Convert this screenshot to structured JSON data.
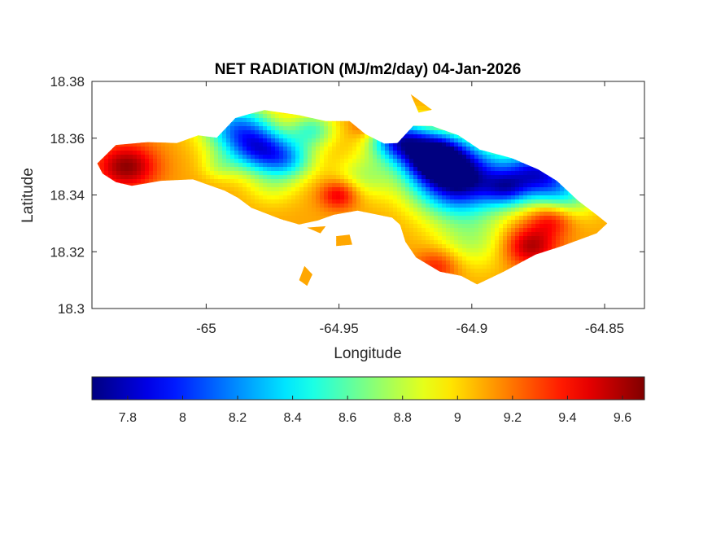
{
  "chart_data": {
    "type": "heatmap",
    "title": "NET RADIATION (MJ/m2/day) 04-Jan-2026",
    "xlabel": "Longitude",
    "ylabel": "Latitude",
    "xlim": [
      -65.043,
      -64.835
    ],
    "ylim": [
      18.3,
      18.38
    ],
    "x_ticks": [
      -65,
      -64.95,
      -64.9,
      -64.85
    ],
    "x_tick_labels": [
      "-65",
      "-64.95",
      "-64.9",
      "-64.85"
    ],
    "y_ticks": [
      18.3,
      18.32,
      18.34,
      18.36,
      18.38
    ],
    "y_tick_labels": [
      "18.3",
      "18.32",
      "18.34",
      "18.36",
      "18.38"
    ],
    "grid": false,
    "colormap": "jet",
    "colorbar": {
      "orientation": "horizontal",
      "placement": "bottom",
      "range": [
        7.67,
        9.68
      ],
      "ticks": [
        7.8,
        8.0,
        8.2,
        8.4,
        8.6,
        8.8,
        9.0,
        9.2,
        9.4,
        9.6
      ],
      "tick_labels": [
        "7.8",
        "8",
        "8.2",
        "8.4",
        "8.6",
        "8.8",
        "9",
        "9.2",
        "9.4",
        "9.6"
      ]
    },
    "outline": [
      [
        -65.041,
        18.3511
      ],
      [
        -65.034,
        18.3576
      ],
      [
        -65.022,
        18.3586
      ],
      [
        -65.011,
        18.3583
      ],
      [
        -65.003,
        18.361
      ],
      [
        -64.996,
        18.3602
      ],
      [
        -64.989,
        18.3671
      ],
      [
        -64.983,
        18.3687
      ],
      [
        -64.978,
        18.3699
      ],
      [
        -64.965,
        18.3681
      ],
      [
        -64.955,
        18.366
      ],
      [
        -64.946,
        18.366
      ],
      [
        -64.94,
        18.3614
      ],
      [
        -64.933,
        18.3581
      ],
      [
        -64.928,
        18.3583
      ],
      [
        -64.922,
        18.3644
      ],
      [
        -64.915,
        18.3643
      ],
      [
        -64.905,
        18.361
      ],
      [
        -64.897,
        18.356
      ],
      [
        -64.885,
        18.353
      ],
      [
        -64.875,
        18.349
      ],
      [
        -64.868,
        18.345
      ],
      [
        -64.86,
        18.338
      ],
      [
        -64.853,
        18.333
      ],
      [
        -64.849,
        18.33
      ],
      [
        -64.853,
        18.3265
      ],
      [
        -64.866,
        18.322
      ],
      [
        -64.876,
        18.319
      ],
      [
        -64.888,
        18.313
      ],
      [
        -64.898,
        18.3085
      ],
      [
        -64.904,
        18.3115
      ],
      [
        -64.912,
        18.313
      ],
      [
        -64.921,
        18.318
      ],
      [
        -64.925,
        18.3235
      ],
      [
        -64.927,
        18.3295
      ],
      [
        -64.93,
        18.332
      ],
      [
        -64.943,
        18.3345
      ],
      [
        -64.952,
        18.333
      ],
      [
        -64.958,
        18.331
      ],
      [
        -64.965,
        18.3296
      ],
      [
        -64.972,
        18.3315
      ],
      [
        -64.983,
        18.3355
      ],
      [
        -64.988,
        18.339
      ],
      [
        -64.993,
        18.3415
      ],
      [
        -65.005,
        18.3455
      ],
      [
        -65.017,
        18.345
      ],
      [
        -65.028,
        18.3432
      ],
      [
        -65.034,
        18.3445
      ],
      [
        -65.039,
        18.3475
      ]
    ],
    "islets": [
      [
        [
          -64.963,
          18.315
        ],
        [
          -64.96,
          18.312
        ],
        [
          -64.962,
          18.308
        ],
        [
          -64.965,
          18.31
        ]
      ],
      [
        [
          -64.951,
          18.3255
        ],
        [
          -64.946,
          18.326
        ],
        [
          -64.945,
          18.3225
        ],
        [
          -64.951,
          18.322
        ]
      ],
      [
        [
          -64.962,
          18.3285
        ],
        [
          -64.955,
          18.329
        ],
        [
          -64.957,
          18.3265
        ]
      ],
      [
        [
          -64.923,
          18.3755
        ],
        [
          -64.915,
          18.37
        ],
        [
          -64.92,
          18.369
        ]
      ]
    ],
    "field_base": 9.1,
    "field_features": [
      {
        "lon": -64.905,
        "lat": 18.346,
        "value": 7.6,
        "radius": 0.012
      },
      {
        "lon": -64.915,
        "lat": 18.354,
        "value": 7.9,
        "radius": 0.008
      },
      {
        "lon": -64.928,
        "lat": 18.3595,
        "value": 8.1,
        "radius": 0.007
      },
      {
        "lon": -64.875,
        "lat": 18.348,
        "value": 8.0,
        "radius": 0.009
      },
      {
        "lon": -64.887,
        "lat": 18.342,
        "value": 8.5,
        "radius": 0.006
      },
      {
        "lon": -64.865,
        "lat": 18.3395,
        "value": 8.6,
        "radius": 0.008
      },
      {
        "lon": -64.989,
        "lat": 18.364,
        "value": 8.3,
        "radius": 0.009
      },
      {
        "lon": -64.98,
        "lat": 18.356,
        "value": 8.2,
        "radius": 0.008
      },
      {
        "lon": -64.969,
        "lat": 18.3525,
        "value": 8.5,
        "radius": 0.007
      },
      {
        "lon": -64.96,
        "lat": 18.363,
        "value": 8.6,
        "radius": 0.006
      },
      {
        "lon": -64.94,
        "lat": 18.347,
        "value": 8.8,
        "radius": 0.008
      },
      {
        "lon": -64.9,
        "lat": 18.324,
        "value": 8.8,
        "radius": 0.01
      },
      {
        "lon": -64.975,
        "lat": 18.343,
        "value": 8.9,
        "radius": 0.007
      },
      {
        "lon": -64.995,
        "lat": 18.35,
        "value": 8.9,
        "radius": 0.005
      },
      {
        "lon": -65.03,
        "lat": 18.35,
        "value": 9.65,
        "radius": 0.008
      },
      {
        "lon": -64.878,
        "lat": 18.322,
        "value": 9.6,
        "radius": 0.007
      },
      {
        "lon": -64.913,
        "lat": 18.315,
        "value": 9.4,
        "radius": 0.006
      },
      {
        "lon": -64.95,
        "lat": 18.34,
        "value": 9.5,
        "radius": 0.005
      },
      {
        "lon": -64.87,
        "lat": 18.332,
        "value": 9.5,
        "radius": 0.006
      },
      {
        "lon": -64.94,
        "lat": 18.364,
        "value": 9.3,
        "radius": 0.004
      }
    ]
  }
}
